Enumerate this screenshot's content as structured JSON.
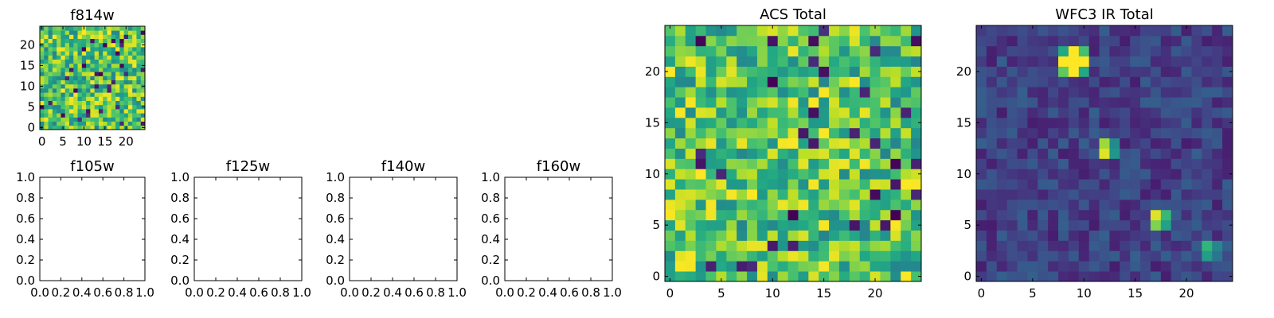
{
  "chart_data": [
    {
      "type": "heatmap",
      "title": "f814w",
      "colormap": "viridis",
      "size": 25,
      "xticks": [
        0,
        5,
        10,
        15,
        20
      ],
      "yticks": [
        0,
        5,
        10,
        15,
        20
      ],
      "xlim": [
        -0.5,
        24.5
      ],
      "ylim": [
        -0.5,
        24.5
      ],
      "description_values": "noise image, values mostly mid-to-high on viridis scale",
      "seed": 814,
      "sources": []
    },
    {
      "type": "empty",
      "title": "f105w",
      "xticks": [
        "0.0",
        "0.2",
        "0.4",
        "0.6",
        "0.8",
        "1.0"
      ],
      "yticks": [
        "0.0",
        "0.2",
        "0.4",
        "0.6",
        "0.8",
        "1.0"
      ]
    },
    {
      "type": "empty",
      "title": "f125w",
      "xticks": [
        "0.0",
        "0.2",
        "0.4",
        "0.6",
        "0.8",
        "1.0"
      ],
      "yticks": [
        "0.0",
        "0.2",
        "0.4",
        "0.6",
        "0.8",
        "1.0"
      ]
    },
    {
      "type": "empty",
      "title": "f140w",
      "xticks": [
        "0.0",
        "0.2",
        "0.4",
        "0.6",
        "0.8",
        "1.0"
      ],
      "yticks": [
        "0.0",
        "0.2",
        "0.4",
        "0.6",
        "0.8",
        "1.0"
      ]
    },
    {
      "type": "empty",
      "title": "f160w",
      "xticks": [
        "0.0",
        "0.2",
        "0.4",
        "0.6",
        "0.8",
        "1.0"
      ],
      "yticks": [
        "0.0",
        "0.2",
        "0.4",
        "0.6",
        "0.8",
        "1.0"
      ]
    },
    {
      "type": "heatmap",
      "title": "ACS Total",
      "colormap": "viridis",
      "size": 25,
      "xticks": [
        0,
        5,
        10,
        15,
        20
      ],
      "yticks": [
        0,
        5,
        10,
        15,
        20
      ],
      "xlim": [
        -0.5,
        24.5
      ],
      "ylim": [
        -0.5,
        24.5
      ],
      "seed": 1234,
      "sources": []
    },
    {
      "type": "heatmap",
      "title": "WFC3 IR Total",
      "colormap": "viridis",
      "size": 25,
      "xticks": [
        0,
        5,
        10,
        15,
        20
      ],
      "yticks": [
        0,
        5,
        10,
        15,
        20
      ],
      "xlim": [
        -0.5,
        24.5
      ],
      "ylim": [
        -0.5,
        24.5
      ],
      "seed": 3003,
      "background_level": "low",
      "sources": [
        {
          "x": 9,
          "y": 21,
          "shape": "cross",
          "peak": 1.0
        },
        {
          "x": 12,
          "y": 11.5,
          "shape": "pair-vertical",
          "peak": 0.95
        },
        {
          "x": 16.5,
          "y": 5.5,
          "shape": "block",
          "peak": 0.95
        },
        {
          "x": 21.5,
          "y": 2.5,
          "shape": "block",
          "peak": 0.65
        }
      ]
    }
  ]
}
